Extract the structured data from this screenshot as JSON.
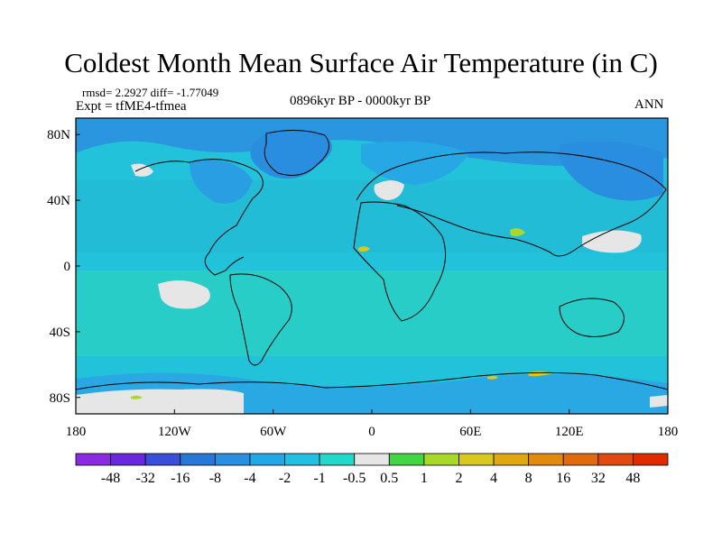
{
  "title": "Coldest Month Mean Surface Air Temperature (in C)",
  "stats": "rmsd= 2.2927  diff= -1.77049",
  "experiment": "Expt = tfME4-tfmea",
  "period": "0896kyr BP - 0000kyr BP",
  "season": "ANN",
  "map": {
    "lon_range": [
      -180,
      180
    ],
    "lat_range": [
      -90,
      90
    ],
    "projection": "cylindrical-equidistant",
    "lat_ticks": [
      {
        "value": 80,
        "label": "80N"
      },
      {
        "value": 40,
        "label": "40N"
      },
      {
        "value": 0,
        "label": "0"
      },
      {
        "value": -40,
        "label": "40S"
      },
      {
        "value": -80,
        "label": "80S"
      }
    ],
    "lon_ticks": [
      {
        "value": -180,
        "label": "180"
      },
      {
        "value": -120,
        "label": "120W"
      },
      {
        "value": -60,
        "label": "60W"
      },
      {
        "value": 0,
        "label": "0"
      },
      {
        "value": 60,
        "label": "60E"
      },
      {
        "value": 120,
        "label": "120E"
      },
      {
        "value": 180,
        "label": "180"
      }
    ]
  },
  "colorbar": {
    "levels": [
      "-48",
      "-32",
      "-16",
      "-8",
      "-4",
      "-2",
      "-1",
      "-0.5",
      "0.5",
      "1",
      "2",
      "4",
      "8",
      "16",
      "32",
      "48"
    ],
    "colors": [
      "#8a2be2",
      "#6a27e0",
      "#3a4fd8",
      "#2777d6",
      "#2a8fe0",
      "#22a8e6",
      "#22c0e2",
      "#22d8c8",
      "#e6e6e6",
      "#44d444",
      "#a8d82a",
      "#d8c820",
      "#e0a810",
      "#e08a10",
      "#e06a10",
      "#e04a10",
      "#e02a00"
    ]
  }
}
